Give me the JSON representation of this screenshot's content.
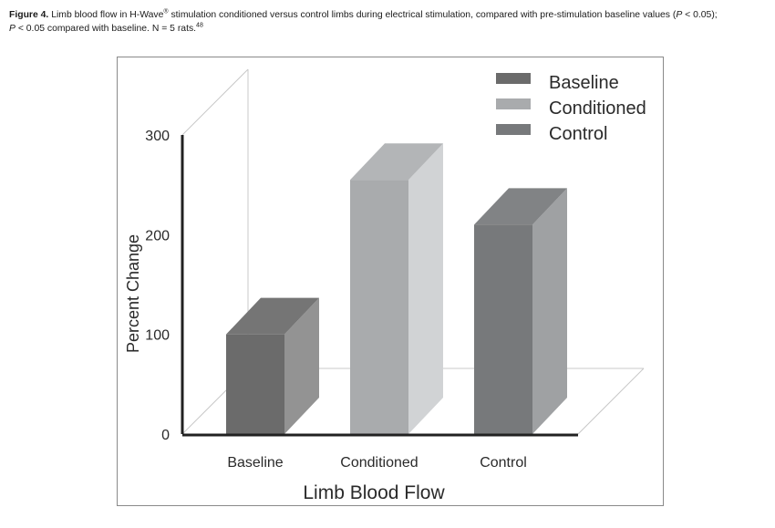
{
  "caption": {
    "label": "Figure 4.",
    "part1": " Limb blood flow in H-Wave",
    "reg": "®",
    "part2": " stimulation conditioned versus control limbs during electrical stimulation, compared with pre-stimulation baseline values (",
    "p1": "P",
    "part3": " < 0.05);",
    "p2": "P",
    "part4": " < 0.05 compared with baseline. N = 5 rats.",
    "ref": "48"
  },
  "chart_data": {
    "type": "bar",
    "title": "",
    "xlabel": "Limb Blood Flow",
    "ylabel": "Percent Change",
    "categories": [
      "Baseline",
      "Conditioned",
      "Control"
    ],
    "values": [
      100,
      255,
      210
    ],
    "ylim": [
      0,
      300
    ],
    "yticks": [
      0,
      100,
      200,
      300
    ],
    "legend": {
      "position": "top-right",
      "entries": [
        "Baseline",
        "Conditioned",
        "Control"
      ]
    },
    "colors": {
      "Baseline": "#6b6b6b",
      "Conditioned": "#a9abad",
      "Control": "#77797b"
    },
    "style": "3d"
  }
}
